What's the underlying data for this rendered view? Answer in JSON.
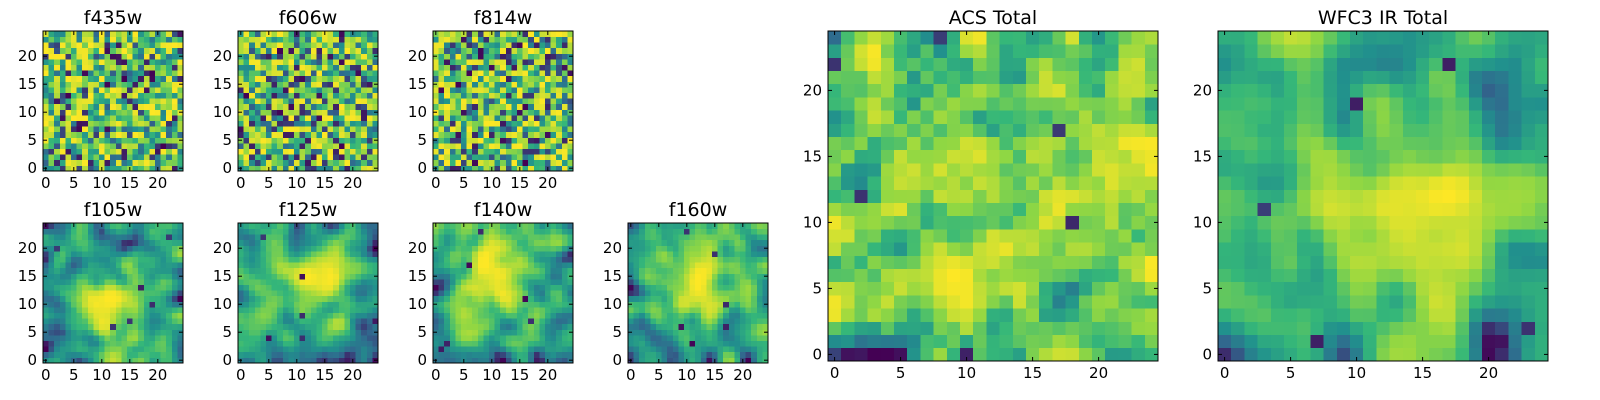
{
  "figure": {
    "type": "heatmap",
    "colormap": "viridis",
    "colormap_stops": [
      "#440154",
      "#31688e",
      "#21908d",
      "#35b779",
      "#90d743",
      "#fde725"
    ]
  },
  "chart_data": [
    {
      "type": "heatmap",
      "title": "f435w",
      "grid_size": 25,
      "xlim": [
        0,
        24
      ],
      "ylim": [
        0,
        24
      ],
      "xticks": [
        0,
        5,
        10,
        15,
        20
      ],
      "yticks": [
        0,
        5,
        10,
        15,
        20
      ],
      "texture": "fine-noise",
      "seed": 11
    },
    {
      "type": "heatmap",
      "title": "f606w",
      "grid_size": 25,
      "xlim": [
        0,
        24
      ],
      "ylim": [
        0,
        24
      ],
      "xticks": [
        0,
        5,
        10,
        15,
        20
      ],
      "yticks": [
        0,
        5,
        10,
        15,
        20
      ],
      "texture": "fine-noise",
      "seed": 23
    },
    {
      "type": "heatmap",
      "title": "f814w",
      "grid_size": 25,
      "xlim": [
        0,
        24
      ],
      "ylim": [
        0,
        24
      ],
      "xticks": [
        0,
        5,
        10,
        15,
        20
      ],
      "yticks": [
        0,
        5,
        10,
        15,
        20
      ],
      "texture": "fine-noise",
      "seed": 37
    },
    {
      "type": "heatmap",
      "title": "f105w",
      "grid_size": 25,
      "xlim": [
        0,
        24
      ],
      "ylim": [
        0,
        24
      ],
      "xticks": [
        0,
        5,
        10,
        15,
        20
      ],
      "yticks": [
        0,
        5,
        10,
        15,
        20
      ],
      "texture": "smooth-blob",
      "seed": 41
    },
    {
      "type": "heatmap",
      "title": "f125w",
      "grid_size": 25,
      "xlim": [
        0,
        24
      ],
      "ylim": [
        0,
        24
      ],
      "xticks": [
        0,
        5,
        10,
        15,
        20
      ],
      "yticks": [
        0,
        5,
        10,
        15,
        20
      ],
      "texture": "smooth-blob",
      "seed": 53
    },
    {
      "type": "heatmap",
      "title": "f140w",
      "grid_size": 25,
      "xlim": [
        0,
        24
      ],
      "ylim": [
        0,
        24
      ],
      "xticks": [
        0,
        5,
        10,
        15,
        20
      ],
      "yticks": [
        0,
        5,
        10,
        15,
        20
      ],
      "texture": "smooth-blob",
      "seed": 67
    },
    {
      "type": "heatmap",
      "title": "f160w",
      "grid_size": 25,
      "xlim": [
        0,
        24
      ],
      "ylim": [
        0,
        24
      ],
      "xticks": [
        0,
        5,
        10,
        15,
        20
      ],
      "yticks": [
        0,
        5,
        10,
        15,
        20
      ],
      "texture": "smooth-blob",
      "seed": 79
    },
    {
      "type": "heatmap",
      "title": "ACS Total",
      "grid_size": 25,
      "xlim": [
        0,
        24
      ],
      "ylim": [
        0,
        24
      ],
      "xticks": [
        0,
        5,
        10,
        15,
        20
      ],
      "yticks": [
        0,
        5,
        10,
        15,
        20
      ],
      "texture": "medium-noise",
      "seed": 97
    },
    {
      "type": "heatmap",
      "title": "WFC3 IR Total",
      "grid_size": 25,
      "xlim": [
        0,
        24
      ],
      "ylim": [
        0,
        24
      ],
      "xticks": [
        0,
        5,
        10,
        15,
        20
      ],
      "yticks": [
        0,
        5,
        10,
        15,
        20
      ],
      "texture": "smooth-blob",
      "seed": 131
    }
  ]
}
